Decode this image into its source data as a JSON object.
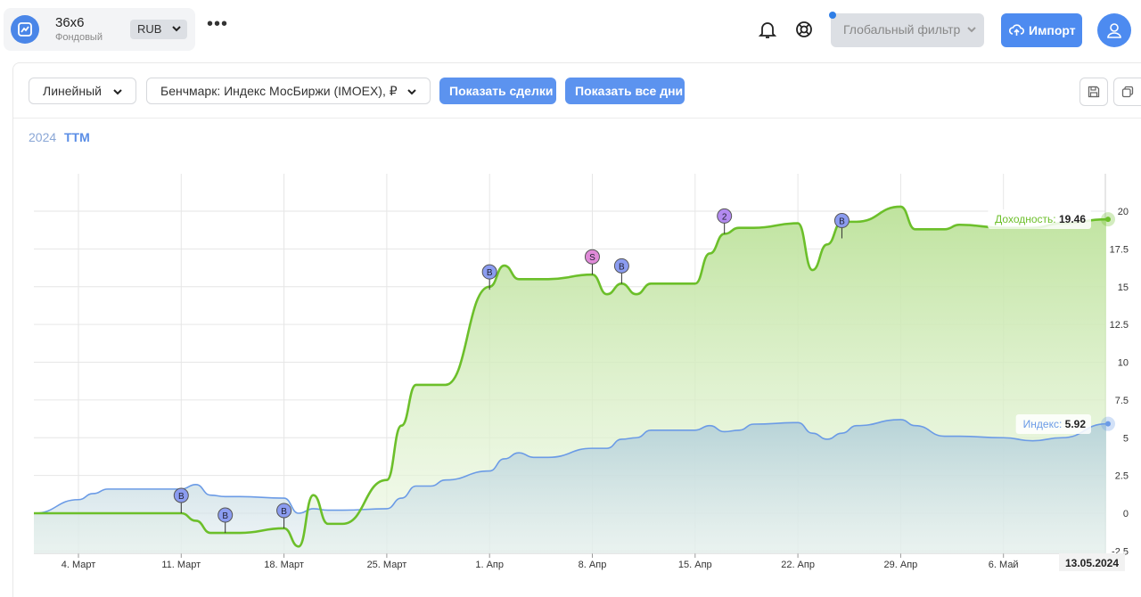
{
  "header": {
    "portfolio_name": "36x6",
    "portfolio_type": "Фондовый",
    "currency": "RUB",
    "more_label": "•••",
    "global_filter_label": "Глобальный фильтр",
    "import_label": "Импорт",
    "icons": [
      "chart-logo-icon",
      "bell-icon",
      "lifebuoy-icon",
      "cloud-upload-icon",
      "user-icon"
    ]
  },
  "toolbar": {
    "chart_type": "Линейный",
    "benchmark": "Бенчмарк: Индекс МосБиржи (IMOEX), ₽",
    "show_trades_label": "Показать сделки",
    "show_all_days_label": "Показать все дни"
  },
  "periods": [
    {
      "label": "2024",
      "active": false
    },
    {
      "label": "TTM",
      "active": true
    }
  ],
  "chart_data": {
    "type": "area",
    "x_labels": [
      "4. Март",
      "11. Март",
      "18. Март",
      "25. Март",
      "1. Апр",
      "8. Апр",
      "15. Апр",
      "22. Апр",
      "29. Апр",
      "6. Май"
    ],
    "y_ticks": [
      "20",
      "17.5",
      "15",
      "12.5",
      "10",
      "7.5",
      "5",
      "2.5",
      "0",
      "-2.5"
    ],
    "ylim": [
      -2.5,
      20
    ],
    "current_date_label": "13.05.2024",
    "colors": {
      "portfolio": "#6cbf2a",
      "index": "#6b9be6",
      "buy_marker": "#8b9cf0",
      "sell_marker": "#e08ad8",
      "multi_marker": "#b38af0"
    },
    "series": [
      {
        "name": "Доходность",
        "end_label": "Доходность",
        "end_value": "19.46",
        "x": [
          "29.02",
          "01.03",
          "04.03",
          "05.03",
          "06.03",
          "07.03",
          "11.03",
          "12.03",
          "13.03",
          "14.03",
          "15.03",
          "18.03",
          "19.03",
          "20.03",
          "21.03",
          "22.03",
          "25.03",
          "26.03",
          "27.03",
          "28.03",
          "29.03",
          "01.04",
          "02.04",
          "03.04",
          "04.04",
          "05.04",
          "08.04",
          "09.04",
          "10.04",
          "11.04",
          "12.04",
          "15.04",
          "16.04",
          "17.04",
          "18.04",
          "19.04",
          "22.04",
          "23.04",
          "24.04",
          "25.04",
          "26.04",
          "29.04",
          "30.04",
          "02.05",
          "03.05",
          "06.05",
          "08.05",
          "10.05",
          "13.05"
        ],
        "values": [
          0,
          0,
          0,
          0,
          0,
          0,
          0,
          -0.5,
          -1.3,
          -1.3,
          -1.3,
          -1.0,
          -2.2,
          1.2,
          -0.7,
          -0.7,
          2.2,
          5.8,
          8.5,
          8.5,
          8.5,
          15,
          16.4,
          15.5,
          15.5,
          15.5,
          15.8,
          14.5,
          15.2,
          14.5,
          15.2,
          15.2,
          17.2,
          18.5,
          18.9,
          18.9,
          19.2,
          16.1,
          17.8,
          19.3,
          19.3,
          20.3,
          18.8,
          18.8,
          19.1,
          18.9,
          18.9,
          19.2,
          19.46
        ]
      },
      {
        "name": "Индекс",
        "end_label": "Индекс",
        "end_value": "5.92",
        "x": [
          "29.02",
          "01.03",
          "04.03",
          "05.03",
          "06.03",
          "07.03",
          "11.03",
          "12.03",
          "13.03",
          "14.03",
          "15.03",
          "18.03",
          "19.03",
          "20.03",
          "21.03",
          "22.03",
          "25.03",
          "26.03",
          "27.03",
          "28.03",
          "29.03",
          "01.04",
          "02.04",
          "03.04",
          "04.04",
          "05.04",
          "08.04",
          "09.04",
          "10.04",
          "11.04",
          "12.04",
          "15.04",
          "16.04",
          "17.04",
          "18.04",
          "19.04",
          "22.04",
          "23.04",
          "24.04",
          "25.04",
          "26.04",
          "29.04",
          "30.04",
          "02.05",
          "03.05",
          "06.05",
          "08.05",
          "10.05",
          "13.05"
        ],
        "values": [
          0,
          0,
          0.9,
          1.3,
          1.6,
          1.6,
          1.6,
          1.9,
          1.2,
          1.1,
          1.1,
          1.0,
          0,
          0.3,
          0.2,
          0.2,
          0.3,
          1.0,
          1.8,
          1.8,
          2.2,
          2.8,
          3.6,
          4.0,
          3.7,
          3.7,
          4.3,
          4.3,
          4.9,
          5.0,
          5.5,
          5.5,
          5.8,
          5.4,
          5.5,
          5.9,
          6.0,
          5.3,
          4.9,
          5.3,
          5.8,
          6.2,
          5.8,
          5.1,
          5.1,
          5.0,
          4.8,
          5.0,
          5.92
        ]
      }
    ],
    "markers": [
      {
        "label": "B",
        "x": "11.03",
        "y": 0
      },
      {
        "label": "B",
        "x": "14.03",
        "y": -1.3
      },
      {
        "label": "B",
        "x": "18.03",
        "y": -1.0
      },
      {
        "label": "B",
        "x": "01.04",
        "y": 14.8
      },
      {
        "label": "S",
        "x": "08.04",
        "y": 15.8
      },
      {
        "label": "B",
        "x": "10.04",
        "y": 15.2
      },
      {
        "label": "2",
        "x": "17.04",
        "y": 18.5
      },
      {
        "label": "B",
        "x": "25.04",
        "y": 18.2
      }
    ]
  }
}
